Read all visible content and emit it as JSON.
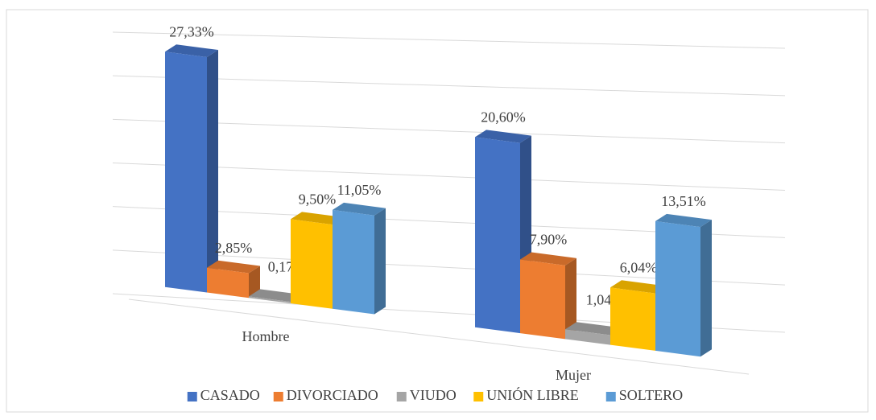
{
  "chart_data": {
    "type": "bar3d",
    "categories": [
      "Hombre",
      "Mujer"
    ],
    "series": [
      {
        "name": "CASADO",
        "color": "#4472c4",
        "values": [
          27.33,
          20.6
        ],
        "value_labels": [
          "27,33%",
          "20,60%"
        ]
      },
      {
        "name": "DIVORCIADO",
        "color": "#ed7d31",
        "values": [
          2.85,
          7.9
        ],
        "value_labels": [
          "2,85%",
          "7,90%"
        ]
      },
      {
        "name": "VIUDO",
        "color": "#a5a5a5",
        "values": [
          0.17,
          1.04
        ],
        "value_labels": [
          "0,17%",
          "1,04%"
        ]
      },
      {
        "name": "UNIÓN LIBRE",
        "color": "#ffc000",
        "values": [
          9.5,
          6.04
        ],
        "value_labels": [
          "9,50%",
          "6,04%"
        ]
      },
      {
        "name": "SOLTERO",
        "color": "#5b9bd5",
        "values": [
          11.05,
          13.51
        ],
        "value_labels": [
          "11,05%",
          "13,51%"
        ]
      }
    ],
    "ylim": [
      0,
      30
    ],
    "yticks": [
      0,
      5,
      10,
      15,
      20,
      25,
      30
    ],
    "grid": true,
    "legend": "bottom"
  }
}
